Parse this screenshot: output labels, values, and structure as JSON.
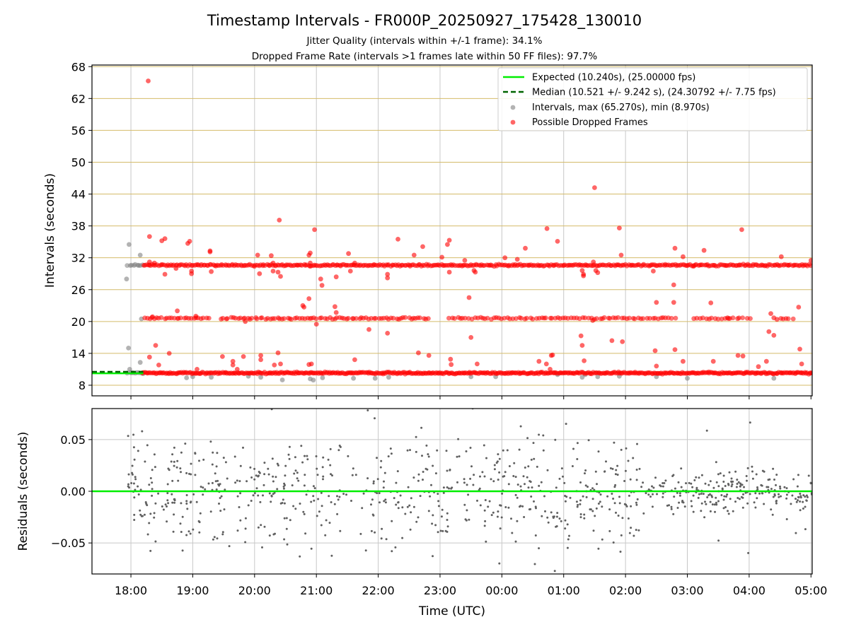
{
  "chart_data": [
    {
      "type": "scatter",
      "panel": "intervals",
      "title": "Timestamp Intervals - FR000P_20250927_175428_130010",
      "subtitle_lines": [
        "Jitter Quality (intervals within +/-1 frame): 34.1%",
        "Dropped Frame Rate (intervals >1 frames late within 50 FF files): 97.7%"
      ],
      "xlabel": "Time (UTC)",
      "ylabel": "Intervals (seconds)",
      "x_unit": "hours since 17:00 UTC",
      "xlim": [
        0.37,
        12.02
      ],
      "ylim": [
        6.0,
        68.3
      ],
      "x_ticks": [
        1,
        2,
        3,
        4,
        5,
        6,
        7,
        8,
        9,
        10,
        11,
        12
      ],
      "x_tick_labels": [
        "18:00",
        "19:00",
        "20:00",
        "21:00",
        "22:00",
        "23:00",
        "00:00",
        "01:00",
        "02:00",
        "03:00",
        "04:00",
        "05:00"
      ],
      "y_ticks": [
        8,
        14,
        20,
        26,
        32,
        38,
        44,
        50,
        56,
        62,
        68
      ],
      "y_tick_labels": [
        "8",
        "14",
        "20",
        "26",
        "32",
        "38",
        "44",
        "50",
        "56",
        "62",
        "68"
      ],
      "grid": true,
      "legend_position": "top-right",
      "legend": [
        "Expected (10.240s), (25.00000 fps)",
        "Median (10.521 +/- 9.242 s), (24.30792 +/- 7.75 fps)",
        "Intervals, max (65.270s), min (8.970s)",
        "Possible Dropped Frames"
      ],
      "series": [
        {
          "name": "Expected",
          "kind": "line",
          "color": "#00ee00",
          "x": [
            0.37,
            1.2
          ],
          "y": [
            10.24,
            10.24
          ]
        },
        {
          "name": "Median",
          "kind": "dashed-line",
          "color": "#006400",
          "x": [
            0.37,
            1.2
          ],
          "y": [
            10.521,
            10.521
          ]
        },
        {
          "name": "Intervals",
          "kind": "points",
          "color": "#808080",
          "bands": [
            {
              "x_range": [
                0.95,
                1.2
              ],
              "y": 30.6,
              "step": 0.03
            },
            {
              "x_range": [
                0.95,
                1.2
              ],
              "y": 10.3,
              "step": 0.03
            }
          ],
          "extra_points": [
            {
              "x": 0.93,
              "y": 28.0
            },
            {
              "x": 0.97,
              "y": 34.5
            },
            {
              "x": 0.96,
              "y": 15.0
            },
            {
              "x": 0.98,
              "y": 11.0
            },
            {
              "x": 1.15,
              "y": 32.5
            },
            {
              "x": 1.17,
              "y": 20.5
            },
            {
              "x": 1.15,
              "y": 12.3
            },
            {
              "x": 1.9,
              "y": 9.4
            },
            {
              "x": 2.0,
              "y": 9.6
            },
            {
              "x": 2.3,
              "y": 9.5
            },
            {
              "x": 2.9,
              "y": 9.7
            },
            {
              "x": 3.1,
              "y": 9.5
            },
            {
              "x": 3.45,
              "y": 9.0
            },
            {
              "x": 3.9,
              "y": 9.2
            },
            {
              "x": 3.95,
              "y": 8.97
            },
            {
              "x": 4.1,
              "y": 9.4
            },
            {
              "x": 4.6,
              "y": 9.3
            },
            {
              "x": 4.95,
              "y": 9.3
            },
            {
              "x": 5.17,
              "y": 9.5
            },
            {
              "x": 6.5,
              "y": 9.6
            },
            {
              "x": 6.9,
              "y": 9.6
            },
            {
              "x": 8.3,
              "y": 9.5
            },
            {
              "x": 8.55,
              "y": 9.6
            },
            {
              "x": 8.9,
              "y": 9.7
            },
            {
              "x": 9.5,
              "y": 9.6
            },
            {
              "x": 10.0,
              "y": 9.3
            },
            {
              "x": 11.4,
              "y": 9.3
            },
            {
              "x": 8.35,
              "y": 10.0
            },
            {
              "x": 7.9,
              "y": 10.0
            }
          ]
        },
        {
          "name": "Possible Dropped Frames",
          "kind": "points",
          "color": "#ff0000",
          "bands": [
            {
              "x_range": [
                1.18,
                12.02
              ],
              "y": 10.3,
              "step": 0.02
            },
            {
              "x_range": [
                1.2,
                12.02
              ],
              "y": 30.6,
              "step": 0.025
            },
            {
              "x_range": [
                1.22,
                2.3
              ],
              "y": 20.6,
              "step": 0.04
            },
            {
              "x_range": [
                2.45,
                5.85
              ],
              "y": 20.6,
              "step": 0.04
            },
            {
              "x_range": [
                6.15,
                9.8
              ],
              "y": 20.6,
              "step": 0.045
            },
            {
              "x_range": [
                10.1,
                11.05
              ],
              "y": 20.6,
              "step": 0.05
            },
            {
              "x_range": [
                11.5,
                11.75
              ],
              "y": 20.6,
              "step": 0.05
            }
          ],
          "extra_points": [
            {
              "x": 1.28,
              "y": 65.3
            },
            {
              "x": 1.3,
              "y": 36.0
            },
            {
              "x": 1.5,
              "y": 35.2
            },
            {
              "x": 1.55,
              "y": 35.6
            },
            {
              "x": 1.55,
              "y": 28.9
            },
            {
              "x": 1.4,
              "y": 15.5
            },
            {
              "x": 1.3,
              "y": 13.3
            },
            {
              "x": 1.45,
              "y": 11.8
            },
            {
              "x": 1.3,
              "y": 31.2
            },
            {
              "x": 1.38,
              "y": 31.0
            },
            {
              "x": 1.35,
              "y": 20.9
            },
            {
              "x": 1.62,
              "y": 14.0
            },
            {
              "x": 1.73,
              "y": 30.0
            },
            {
              "x": 1.75,
              "y": 22.0
            },
            {
              "x": 1.95,
              "y": 35.1
            },
            {
              "x": 1.92,
              "y": 34.7
            },
            {
              "x": 1.98,
              "y": 29.0
            },
            {
              "x": 1.98,
              "y": 29.5
            },
            {
              "x": 2.05,
              "y": 21.0
            },
            {
              "x": 2.07,
              "y": 11.0
            },
            {
              "x": 2.28,
              "y": 33.3
            },
            {
              "x": 2.28,
              "y": 33.1
            },
            {
              "x": 2.3,
              "y": 29.4
            },
            {
              "x": 2.48,
              "y": 13.4
            },
            {
              "x": 2.65,
              "y": 11.8
            },
            {
              "x": 2.65,
              "y": 12.5
            },
            {
              "x": 2.82,
              "y": 13.4
            },
            {
              "x": 2.72,
              "y": 11.0
            },
            {
              "x": 2.85,
              "y": 20.0
            },
            {
              "x": 3.05,
              "y": 32.5
            },
            {
              "x": 3.08,
              "y": 29.0
            },
            {
              "x": 3.1,
              "y": 13.6
            },
            {
              "x": 3.1,
              "y": 12.8
            },
            {
              "x": 3.3,
              "y": 29.5
            },
            {
              "x": 3.27,
              "y": 32.4
            },
            {
              "x": 3.3,
              "y": 31.0
            },
            {
              "x": 3.4,
              "y": 39.1
            },
            {
              "x": 3.38,
              "y": 29.3
            },
            {
              "x": 3.42,
              "y": 28.5
            },
            {
              "x": 3.38,
              "y": 14.1
            },
            {
              "x": 3.32,
              "y": 11.8
            },
            {
              "x": 3.42,
              "y": 12.0
            },
            {
              "x": 3.78,
              "y": 23.0
            },
            {
              "x": 3.8,
              "y": 22.7
            },
            {
              "x": 3.88,
              "y": 24.3
            },
            {
              "x": 3.88,
              "y": 32.5
            },
            {
              "x": 3.9,
              "y": 32.9
            },
            {
              "x": 3.9,
              "y": 31.0
            },
            {
              "x": 3.92,
              "y": 12.0
            },
            {
              "x": 3.88,
              "y": 11.9
            },
            {
              "x": 3.97,
              "y": 37.3
            },
            {
              "x": 4.0,
              "y": 19.5
            },
            {
              "x": 4.07,
              "y": 28.0
            },
            {
              "x": 4.09,
              "y": 26.8
            },
            {
              "x": 4.3,
              "y": 22.8
            },
            {
              "x": 4.32,
              "y": 21.7
            },
            {
              "x": 4.32,
              "y": 28.4
            },
            {
              "x": 4.52,
              "y": 32.8
            },
            {
              "x": 4.55,
              "y": 29.5
            },
            {
              "x": 4.62,
              "y": 31.0
            },
            {
              "x": 4.62,
              "y": 12.8
            },
            {
              "x": 4.85,
              "y": 18.5
            },
            {
              "x": 5.15,
              "y": 28.9
            },
            {
              "x": 5.15,
              "y": 28.2
            },
            {
              "x": 5.15,
              "y": 17.8
            },
            {
              "x": 5.32,
              "y": 35.5
            },
            {
              "x": 5.65,
              "y": 14.1
            },
            {
              "x": 5.82,
              "y": 13.6
            },
            {
              "x": 5.72,
              "y": 34.1
            },
            {
              "x": 5.58,
              "y": 32.5
            },
            {
              "x": 6.03,
              "y": 32.1
            },
            {
              "x": 6.15,
              "y": 35.3
            },
            {
              "x": 6.12,
              "y": 34.5
            },
            {
              "x": 6.15,
              "y": 29.3
            },
            {
              "x": 6.17,
              "y": 12.9
            },
            {
              "x": 6.18,
              "y": 11.9
            },
            {
              "x": 6.4,
              "y": 31.5
            },
            {
              "x": 6.55,
              "y": 29.6
            },
            {
              "x": 6.57,
              "y": 29.3
            },
            {
              "x": 6.5,
              "y": 17.0
            },
            {
              "x": 6.47,
              "y": 24.5
            },
            {
              "x": 6.6,
              "y": 12.0
            },
            {
              "x": 7.05,
              "y": 32.0
            },
            {
              "x": 7.25,
              "y": 31.7
            },
            {
              "x": 7.38,
              "y": 33.8
            },
            {
              "x": 7.6,
              "y": 12.5
            },
            {
              "x": 7.72,
              "y": 12.0
            },
            {
              "x": 7.73,
              "y": 37.5
            },
            {
              "x": 7.8,
              "y": 13.6
            },
            {
              "x": 7.82,
              "y": 13.7
            },
            {
              "x": 7.78,
              "y": 11.0
            },
            {
              "x": 7.9,
              "y": 35.1
            },
            {
              "x": 8.3,
              "y": 29.6
            },
            {
              "x": 8.32,
              "y": 28.6
            },
            {
              "x": 8.32,
              "y": 28.9
            },
            {
              "x": 8.28,
              "y": 17.3
            },
            {
              "x": 8.3,
              "y": 15.5
            },
            {
              "x": 8.33,
              "y": 12.6
            },
            {
              "x": 8.5,
              "y": 45.2
            },
            {
              "x": 8.48,
              "y": 31.2
            },
            {
              "x": 8.52,
              "y": 29.6
            },
            {
              "x": 8.55,
              "y": 29.2
            },
            {
              "x": 8.47,
              "y": 20.2
            },
            {
              "x": 8.9,
              "y": 37.6
            },
            {
              "x": 8.93,
              "y": 32.5
            },
            {
              "x": 8.78,
              "y": 16.4
            },
            {
              "x": 8.95,
              "y": 16.2
            },
            {
              "x": 9.45,
              "y": 29.5
            },
            {
              "x": 9.5,
              "y": 23.6
            },
            {
              "x": 9.48,
              "y": 14.5
            },
            {
              "x": 9.5,
              "y": 11.6
            },
            {
              "x": 9.78,
              "y": 26.9
            },
            {
              "x": 9.8,
              "y": 33.8
            },
            {
              "x": 9.78,
              "y": 23.6
            },
            {
              "x": 9.8,
              "y": 14.7
            },
            {
              "x": 9.93,
              "y": 32.2
            },
            {
              "x": 9.93,
              "y": 12.5
            },
            {
              "x": 10.1,
              "y": 30.4
            },
            {
              "x": 10.27,
              "y": 33.4
            },
            {
              "x": 10.38,
              "y": 23.5
            },
            {
              "x": 10.42,
              "y": 12.5
            },
            {
              "x": 10.65,
              "y": 20.7
            },
            {
              "x": 10.82,
              "y": 13.6
            },
            {
              "x": 10.88,
              "y": 37.3
            },
            {
              "x": 10.9,
              "y": 13.5
            },
            {
              "x": 11.15,
              "y": 11.5
            },
            {
              "x": 11.28,
              "y": 12.5
            },
            {
              "x": 11.32,
              "y": 18.1
            },
            {
              "x": 11.35,
              "y": 21.5
            },
            {
              "x": 11.4,
              "y": 17.4
            },
            {
              "x": 11.45,
              "y": 20.4
            },
            {
              "x": 11.4,
              "y": 20.7
            },
            {
              "x": 11.52,
              "y": 32.2
            },
            {
              "x": 11.8,
              "y": 22.7
            },
            {
              "x": 11.82,
              "y": 14.8
            },
            {
              "x": 11.85,
              "y": 12.0
            },
            {
              "x": 12.0,
              "y": 31.5
            }
          ]
        }
      ]
    },
    {
      "type": "scatter",
      "panel": "residuals",
      "xlabel": "Time (UTC)",
      "ylabel": "Residuals (seconds)",
      "xlim": [
        0.37,
        12.02
      ],
      "ylim": [
        -0.08,
        0.08
      ],
      "y_ticks": [
        -0.05,
        0.0,
        0.05
      ],
      "y_tick_labels": [
        "−0.05",
        "0.00",
        "0.05"
      ],
      "grid": true,
      "series": [
        {
          "name": "Zero line",
          "kind": "line",
          "color": "#00ee00",
          "y": 0.0
        },
        {
          "name": "Residuals",
          "kind": "points",
          "color": "#606060",
          "x_range": [
            0.95,
            12.02
          ],
          "count": 900,
          "spread_early": 0.075,
          "spread_late": 0.03,
          "late_start_x": 9.3
        }
      ]
    }
  ]
}
